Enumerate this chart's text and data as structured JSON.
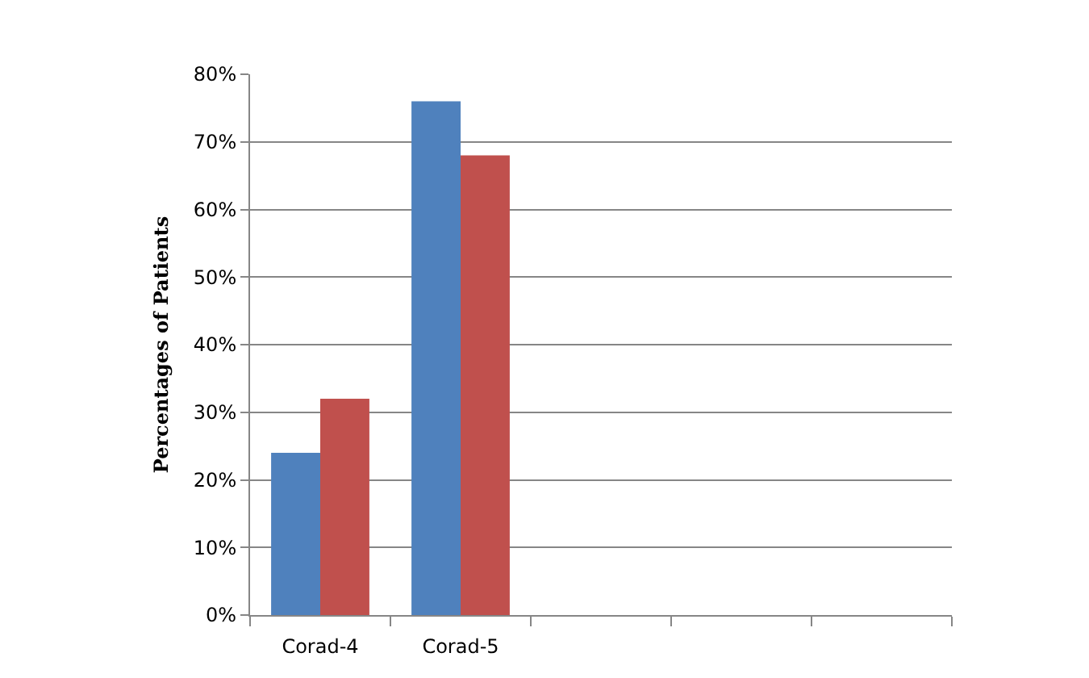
{
  "chart_data": {
    "type": "bar",
    "ylabel": "Percentages of Patients",
    "categories": [
      "Corad-4",
      "Corad-5",
      null,
      null,
      null
    ],
    "series": [
      {
        "color": "#4f81bd",
        "values": [
          24,
          76,
          null,
          null,
          null
        ]
      },
      {
        "color": "#c0504d",
        "values": [
          32,
          68,
          null,
          null,
          null
        ]
      }
    ],
    "ylim": [
      0,
      80
    ],
    "yticks": [
      {
        "value": 0,
        "label": "0%"
      },
      {
        "value": 10,
        "label": "10%"
      },
      {
        "value": 20,
        "label": "20%"
      },
      {
        "value": 30,
        "label": "30%"
      },
      {
        "value": 40,
        "label": "40%"
      },
      {
        "value": 50,
        "label": "50%"
      },
      {
        "value": 60,
        "label": "60%"
      },
      {
        "value": 70,
        "label": "70%"
      },
      {
        "value": 80,
        "label": "80%"
      }
    ],
    "grid": "y"
  }
}
